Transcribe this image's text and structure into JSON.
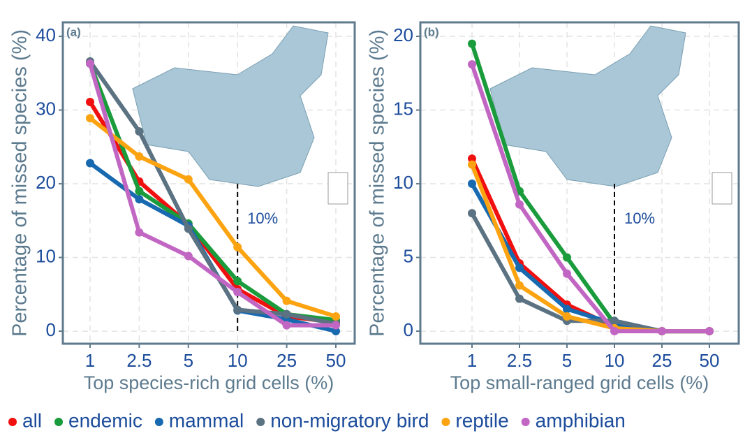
{
  "chart_data": [
    {
      "type": "line",
      "panel_label": "(a)",
      "annotation": "10%",
      "y_label": "Percentage of missed species (%)",
      "x_label": "Top species-rich grid cells (%)",
      "categories": [
        "1",
        "2.5",
        "5",
        "10",
        "25",
        "50"
      ],
      "ylim": [
        -1.7,
        41.9
      ],
      "yticks": [
        0,
        10,
        20,
        30,
        40
      ],
      "grid": true,
      "series": [
        {
          "name": "all",
          "color": "#f01010",
          "values": [
            31.1,
            20.3,
            14.5,
            5.7,
            2.0,
            1.2
          ]
        },
        {
          "name": "endemic",
          "color": "#1a9b3c",
          "values": [
            36.3,
            19.0,
            14.6,
            6.8,
            2.3,
            1.5
          ]
        },
        {
          "name": "mammal",
          "color": "#1769b0",
          "values": [
            22.8,
            17.9,
            14.3,
            2.8,
            1.6,
            0.0
          ]
        },
        {
          "name": "non-migratory bird",
          "color": "#5b7282",
          "values": [
            36.6,
            27.1,
            13.9,
            2.9,
            2.3,
            1.0
          ]
        },
        {
          "name": "reptile",
          "color": "#fca311",
          "values": [
            28.9,
            23.7,
            20.6,
            11.4,
            4.1,
            2.0
          ]
        },
        {
          "name": "amphibian",
          "color": "#c266c4",
          "values": [
            36.3,
            13.4,
            10.2,
            5.3,
            0.8,
            0.8
          ]
        }
      ]
    },
    {
      "type": "line",
      "panel_label": "(b)",
      "annotation": "10%",
      "y_label": "Percentage of missed species (%)",
      "x_label": "Top small-ranged grid cells (%)",
      "categories": [
        "1",
        "2.5",
        "5",
        "10",
        "25",
        "50"
      ],
      "ylim": [
        -0.85,
        20.95
      ],
      "yticks": [
        0,
        5,
        10,
        15,
        20
      ],
      "grid": true,
      "series": [
        {
          "color": "#f01010",
          "values": [
            11.7,
            4.6,
            1.8,
            0.3,
            0,
            0
          ]
        },
        {
          "color": "#1a9b3c",
          "values": [
            19.5,
            9.5,
            5.0,
            0.5,
            0,
            0
          ]
        },
        {
          "color": "#1769b0",
          "values": [
            10.0,
            4.3,
            1.5,
            0.5,
            0,
            0
          ]
        },
        {
          "color": "#5b7282",
          "values": [
            8.0,
            2.2,
            0.7,
            0.7,
            0,
            0
          ]
        },
        {
          "color": "#fca311",
          "values": [
            11.3,
            3.1,
            1.0,
            0.2,
            0,
            0
          ]
        },
        {
          "color": "#c266c4",
          "values": [
            18.1,
            8.6,
            3.9,
            0,
            0,
            0
          ]
        }
      ]
    }
  ]
}
